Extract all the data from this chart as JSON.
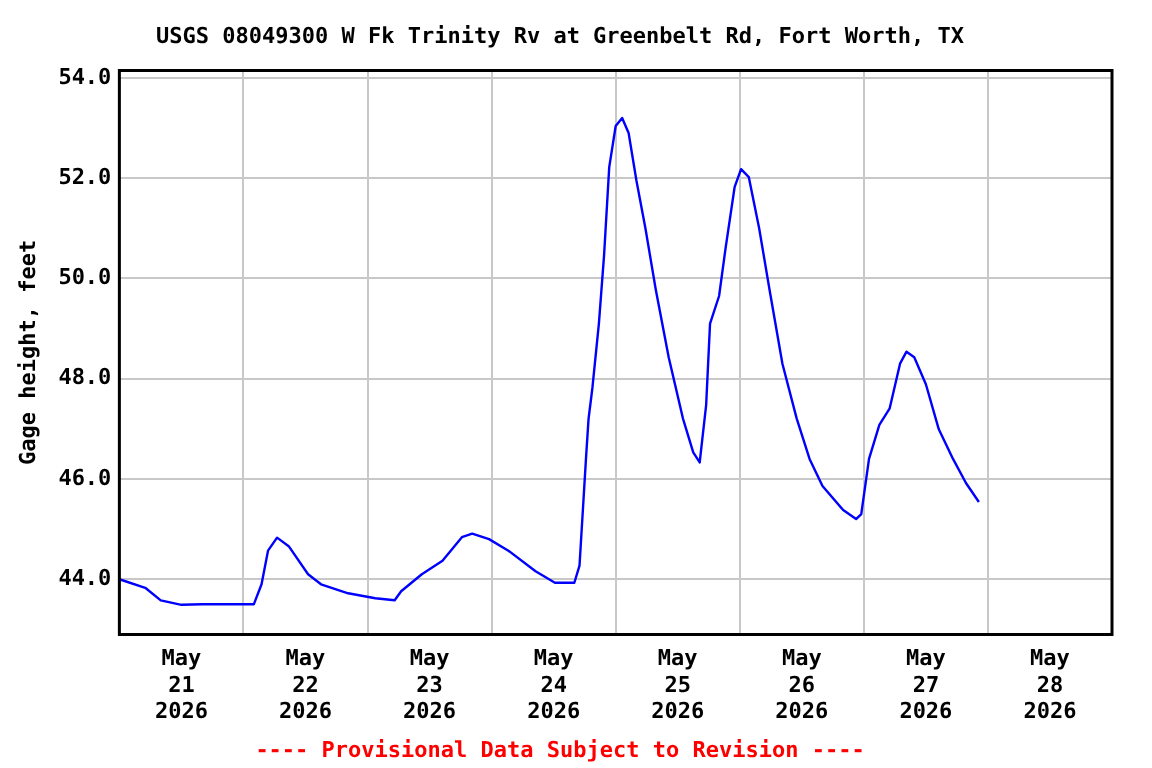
{
  "chart_data": {
    "type": "line",
    "title": "USGS 08049300 W Fk Trinity Rv at Greenbelt Rd, Fort Worth, TX",
    "ylabel": "Gage height, feet",
    "annotations": [
      "---- Provisional Data Subject to Revision ----"
    ],
    "x": [
      "2026-05-21T00:00",
      "2026-05-21T05:00",
      "2026-05-21T08:00",
      "2026-05-21T12:00",
      "2026-05-21T16:00",
      "2026-05-22T02:00",
      "2026-05-22T03:30",
      "2026-05-22T04:45",
      "2026-05-22T06:30",
      "2026-05-22T08:45",
      "2026-05-22T12:30",
      "2026-05-22T15:00",
      "2026-05-22T20:15",
      "2026-05-23T01:30",
      "2026-05-23T05:15",
      "2026-05-23T06:30",
      "2026-05-23T10:30",
      "2026-05-23T14:30",
      "2026-05-23T18:15",
      "2026-05-23T20:15",
      "2026-05-23T23:30",
      "2026-05-24T03:15",
      "2026-05-24T08:30",
      "2026-05-24T12:15",
      "2026-05-24T16:00",
      "2026-05-24T17:00",
      "2026-05-24T18:15",
      "2026-05-24T18:45",
      "2026-05-24T19:30",
      "2026-05-24T20:45",
      "2026-05-24T21:45",
      "2026-05-24T22:45",
      "2026-05-25T00:00",
      "2026-05-25T01:15",
      "2026-05-25T02:30",
      "2026-05-25T04:00",
      "2026-05-25T05:45",
      "2026-05-25T07:45",
      "2026-05-25T10:15",
      "2026-05-25T13:00",
      "2026-05-25T15:00",
      "2026-05-25T16:15",
      "2026-05-25T17:30",
      "2026-05-25T18:15",
      "2026-05-25T20:00",
      "2026-05-25T21:15",
      "2026-05-25T23:00",
      "2026-05-26T00:15",
      "2026-05-26T01:45",
      "2026-05-26T03:45",
      "2026-05-26T05:45",
      "2026-05-26T08:15",
      "2026-05-26T11:00",
      "2026-05-26T13:30",
      "2026-05-26T16:00",
      "2026-05-26T20:00",
      "2026-05-26T22:30",
      "2026-05-26T23:30",
      "2026-05-27T01:00",
      "2026-05-27T03:00",
      "2026-05-27T05:00",
      "2026-05-27T07:00",
      "2026-05-27T08:15",
      "2026-05-27T09:45",
      "2026-05-27T12:00",
      "2026-05-27T14:30",
      "2026-05-27T17:15",
      "2026-05-27T19:45",
      "2026-05-27T22:15"
    ],
    "series": [
      {
        "color": "#0000ff",
        "values": [
          44.0,
          43.83,
          43.58,
          43.49,
          43.5,
          43.5,
          43.9,
          44.57,
          44.83,
          44.66,
          44.1,
          43.9,
          43.72,
          43.62,
          43.58,
          43.76,
          44.1,
          44.37,
          44.84,
          44.91,
          44.8,
          44.57,
          44.16,
          43.93,
          43.93,
          44.27,
          46.4,
          47.2,
          47.82,
          49.1,
          50.46,
          52.22,
          53.04,
          53.2,
          52.9,
          51.96,
          51.0,
          49.78,
          48.43,
          47.21,
          46.53,
          46.33,
          47.48,
          49.1,
          49.65,
          50.6,
          51.82,
          52.18,
          52.02,
          51.0,
          49.78,
          48.3,
          47.21,
          46.4,
          45.86,
          45.38,
          45.2,
          45.3,
          46.4,
          47.08,
          47.41,
          48.3,
          48.54,
          48.43,
          47.89,
          46.99,
          46.4,
          45.92,
          45.54
        ]
      }
    ],
    "xlim": [
      "2026-05-21T00:00",
      "2026-05-29T00:00"
    ],
    "xticks": [
      {
        "value": "2026-05-21T12:00",
        "label": "May\n21\n2026"
      },
      {
        "value": "2026-05-22T00:00",
        "label": null
      },
      {
        "value": "2026-05-22T12:00",
        "label": "May\n22\n2026"
      },
      {
        "value": "2026-05-23T00:00",
        "label": null
      },
      {
        "value": "2026-05-23T12:00",
        "label": "May\n23\n2026"
      },
      {
        "value": "2026-05-24T00:00",
        "label": null
      },
      {
        "value": "2026-05-24T12:00",
        "label": "May\n24\n2026"
      },
      {
        "value": "2026-05-25T00:00",
        "label": null
      },
      {
        "value": "2026-05-25T12:00",
        "label": "May\n25\n2026"
      },
      {
        "value": "2026-05-26T00:00",
        "label": null
      },
      {
        "value": "2026-05-26T12:00",
        "label": "May\n26\n2026"
      },
      {
        "value": "2026-05-27T00:00",
        "label": null
      },
      {
        "value": "2026-05-27T12:00",
        "label": "May\n27\n2026"
      },
      {
        "value": "2026-05-28T00:00",
        "label": null
      },
      {
        "value": "2026-05-28T12:00",
        "label": "May\n28\n2026"
      }
    ],
    "ylim": [
      42.9,
      54.15
    ],
    "yticks": [
      {
        "value": 44,
        "label": "44.0"
      },
      {
        "value": 46,
        "label": "46.0"
      },
      {
        "value": 48,
        "label": "48.0"
      },
      {
        "value": 50,
        "label": "50.0"
      },
      {
        "value": 52,
        "label": "52.0"
      },
      {
        "value": 54,
        "label": "54.0"
      }
    ],
    "grid": true,
    "legend": false,
    "marker": "none",
    "line_style": "solid"
  }
}
